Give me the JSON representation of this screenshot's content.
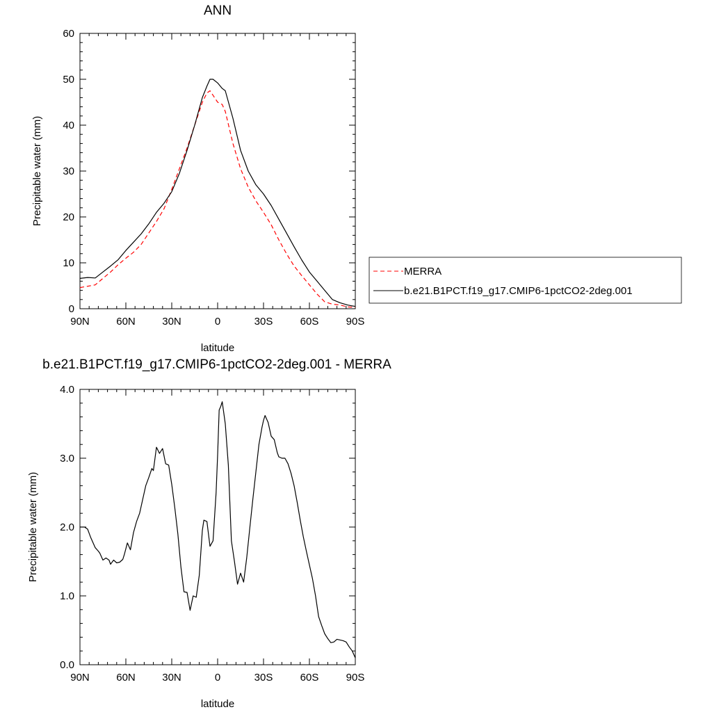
{
  "chart_data": [
    {
      "type": "line",
      "title": "ANN",
      "xlabel": "latitude",
      "ylabel": "Precipitable water (mm)",
      "xlim": [
        -90,
        90
      ],
      "ylim": [
        0,
        60
      ],
      "x_ticks": [
        -90,
        -60,
        -30,
        0,
        30,
        60,
        90
      ],
      "x_tick_labels": [
        "90N",
        "60N",
        "30N",
        "0",
        "30S",
        "60S",
        "90S"
      ],
      "y_ticks": [
        0,
        10,
        20,
        30,
        40,
        50,
        60
      ],
      "y_tick_labels": [
        "0",
        "10",
        "20",
        "30",
        "40",
        "50",
        "60"
      ],
      "grid": false,
      "legend_position": "right",
      "series": [
        {
          "name": "MERRA",
          "color": "#ff0000",
          "style": "dashed",
          "x": [
            -90,
            -85,
            -80,
            -75,
            -70,
            -65,
            -60,
            -55,
            -50,
            -45,
            -40,
            -35,
            -30,
            -25,
            -20,
            -15,
            -10,
            -7,
            -5,
            -3,
            0,
            3,
            5,
            10,
            15,
            20,
            25,
            30,
            35,
            40,
            45,
            50,
            55,
            60,
            65,
            70,
            75,
            80,
            85,
            90
          ],
          "values": [
            4.6,
            4.9,
            5.2,
            6.6,
            8.0,
            9.6,
            11.0,
            12.3,
            14.0,
            16.5,
            19.0,
            21.8,
            26.0,
            30.5,
            35.0,
            40.0,
            45.0,
            47.0,
            47.5,
            46.5,
            45.0,
            44.5,
            43.0,
            36.0,
            30.5,
            26.5,
            23.5,
            21.0,
            18.3,
            15.0,
            12.0,
            9.3,
            7.2,
            5.2,
            3.2,
            1.5,
            1.0,
            0.8,
            0.4,
            0.3
          ]
        },
        {
          "name": "b.e21.B1PCT.f19_g17.CMIP6-1pctCO2-2deg.001",
          "color": "#000000",
          "style": "solid",
          "x": [
            -90,
            -85,
            -80,
            -75,
            -70,
            -65,
            -60,
            -55,
            -50,
            -45,
            -40,
            -35,
            -30,
            -25,
            -20,
            -15,
            -10,
            -7,
            -5,
            -3,
            0,
            3,
            5,
            10,
            15,
            20,
            25,
            30,
            35,
            40,
            45,
            50,
            55,
            60,
            65,
            70,
            75,
            80,
            85,
            90
          ],
          "values": [
            6.6,
            6.8,
            6.7,
            8.0,
            9.3,
            10.7,
            12.7,
            14.5,
            16.3,
            18.5,
            21.0,
            23.0,
            25.5,
            29.5,
            34.5,
            40.0,
            46.0,
            48.5,
            50.0,
            50.0,
            49.2,
            48.0,
            47.5,
            41.5,
            34.5,
            30.0,
            27.0,
            25.0,
            22.5,
            19.5,
            16.5,
            13.5,
            10.6,
            8.0,
            6.0,
            4.0,
            2.0,
            1.3,
            0.8,
            0.5
          ]
        }
      ]
    },
    {
      "type": "line",
      "title": "b.e21.B1PCT.f19_g17.CMIP6-1pctCO2-2deg.001 - MERRA",
      "xlabel": "latitude",
      "ylabel": "Precipitable water (mm)",
      "xlim": [
        -90,
        90
      ],
      "ylim": [
        0,
        4
      ],
      "x_ticks": [
        -90,
        -60,
        -30,
        0,
        30,
        60,
        90
      ],
      "x_tick_labels": [
        "90N",
        "60N",
        "30N",
        "0",
        "30S",
        "60S",
        "90S"
      ],
      "y_ticks": [
        0,
        1,
        2,
        3,
        4
      ],
      "y_tick_labels": [
        "0.0",
        "1.0",
        "2.0",
        "3.0",
        "4.0"
      ],
      "grid": false,
      "series": [
        {
          "color": "#000000",
          "style": "solid",
          "x": [
            -90,
            -87,
            -85,
            -83,
            -80,
            -78,
            -77,
            -75,
            -73,
            -71,
            -70,
            -68,
            -66,
            -64,
            -62,
            -61,
            -59,
            -57,
            -55,
            -53,
            -51,
            -49,
            -47,
            -45,
            -43,
            -42,
            -40,
            -38,
            -36,
            -34,
            -32,
            -30,
            -28,
            -26,
            -24,
            -22,
            -20,
            -18,
            -16,
            -14,
            -12,
            -10,
            -9,
            -7,
            -5,
            -3,
            -1,
            0,
            1,
            2,
            3,
            5,
            7,
            9,
            11,
            13,
            15,
            17,
            19,
            21,
            23,
            25,
            27,
            29,
            30,
            31,
            33,
            35,
            37,
            39,
            40,
            42,
            44,
            46,
            48,
            50,
            52,
            54,
            56,
            58,
            60,
            62,
            64,
            66,
            68,
            70,
            72,
            74,
            76,
            78,
            80,
            82,
            84,
            86,
            88,
            90
          ],
          "values": [
            2.0,
            2.0,
            1.97,
            1.85,
            1.7,
            1.65,
            1.62,
            1.52,
            1.55,
            1.52,
            1.46,
            1.52,
            1.48,
            1.49,
            1.53,
            1.6,
            1.77,
            1.67,
            1.92,
            2.08,
            2.2,
            2.4,
            2.6,
            2.72,
            2.85,
            2.82,
            3.16,
            3.07,
            3.14,
            2.92,
            2.9,
            2.62,
            2.28,
            1.9,
            1.42,
            1.06,
            1.05,
            0.79,
            1.0,
            0.98,
            1.3,
            1.95,
            2.1,
            2.08,
            1.72,
            1.8,
            2.5,
            3.05,
            3.7,
            3.75,
            3.82,
            3.5,
            2.9,
            1.8,
            1.5,
            1.17,
            1.33,
            1.2,
            1.55,
            1.98,
            2.4,
            2.8,
            3.2,
            3.45,
            3.55,
            3.62,
            3.52,
            3.32,
            3.27,
            3.08,
            3.02,
            3.0,
            3.0,
            2.92,
            2.78,
            2.6,
            2.36,
            2.1,
            1.86,
            1.65,
            1.45,
            1.25,
            1.0,
            0.7,
            0.57,
            0.45,
            0.38,
            0.32,
            0.33,
            0.37,
            0.36,
            0.35,
            0.33,
            0.26,
            0.2,
            0.1
          ]
        }
      ]
    }
  ]
}
